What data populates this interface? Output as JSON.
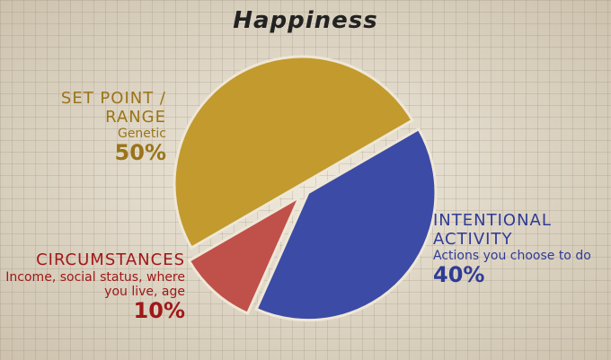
{
  "chart_data": {
    "type": "pie",
    "title": "Happiness",
    "categories": [
      "SET POINT / RANGE",
      "INTENTIONAL ACTIVITY",
      "CIRCUMSTANCES"
    ],
    "descriptions": [
      "Genetic",
      "Actions you choose to do",
      "Income, social status, where you live, age"
    ],
    "values": [
      50,
      40,
      10
    ],
    "value_labels": [
      "50%",
      "40%",
      "10%"
    ],
    "colors": [
      "#c29a2e",
      "#3c4ba6",
      "#c0504a"
    ]
  }
}
